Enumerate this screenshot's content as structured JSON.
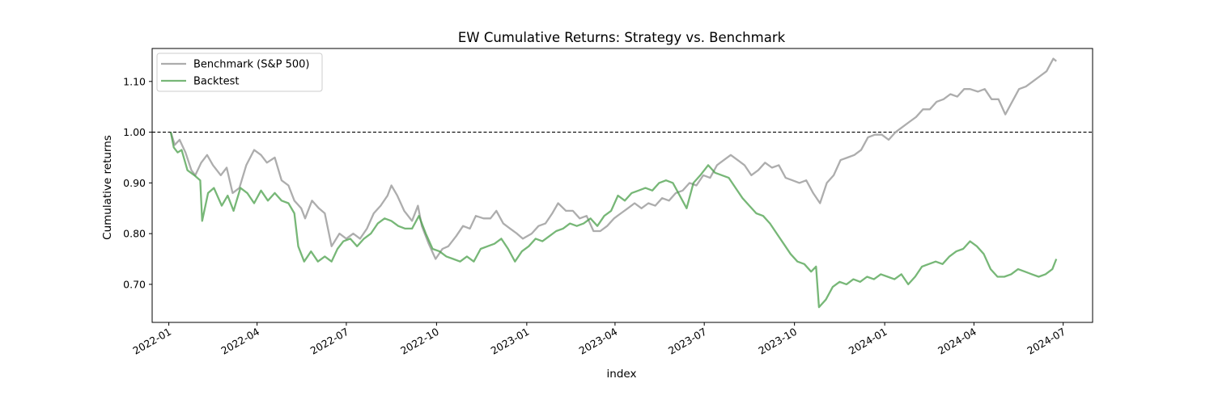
{
  "chart_data": {
    "type": "line",
    "title": "EW Cumulative Returns: Strategy vs. Benchmark",
    "xlabel": "index",
    "ylabel": "Cumulative returns",
    "x_ticks": [
      "2022-01",
      "2022-04",
      "2022-07",
      "2022-10",
      "2023-01",
      "2023-04",
      "2023-07",
      "2023-10",
      "2024-01",
      "2024-04",
      "2024-07"
    ],
    "y_ticks": [
      "0.70",
      "0.80",
      "0.90",
      "1.00",
      "1.10"
    ],
    "xlim": [
      "2021-12-15",
      "2024-07-31"
    ],
    "ylim": [
      0.625,
      1.165
    ],
    "reference_line": {
      "y": 1.0,
      "style": "dashed",
      "color": "#000000"
    },
    "legend_position": "top-left",
    "grid": false,
    "series": [
      {
        "name": "Benchmark (S&P 500)",
        "color": "#a9a9a9",
        "points": [
          [
            "2022-01-03",
            1.0
          ],
          [
            "2022-01-07",
            0.975
          ],
          [
            "2022-01-12",
            0.985
          ],
          [
            "2022-01-18",
            0.96
          ],
          [
            "2022-01-24",
            0.925
          ],
          [
            "2022-01-28",
            0.915
          ],
          [
            "2022-02-03",
            0.94
          ],
          [
            "2022-02-09",
            0.955
          ],
          [
            "2022-02-15",
            0.935
          ],
          [
            "2022-02-23",
            0.915
          ],
          [
            "2022-03-01",
            0.93
          ],
          [
            "2022-03-07",
            0.88
          ],
          [
            "2022-03-14",
            0.89
          ],
          [
            "2022-03-21",
            0.935
          ],
          [
            "2022-03-29",
            0.965
          ],
          [
            "2022-04-05",
            0.955
          ],
          [
            "2022-04-11",
            0.94
          ],
          [
            "2022-04-19",
            0.95
          ],
          [
            "2022-04-26",
            0.905
          ],
          [
            "2022-05-03",
            0.895
          ],
          [
            "2022-05-09",
            0.865
          ],
          [
            "2022-05-16",
            0.85
          ],
          [
            "2022-05-20",
            0.83
          ],
          [
            "2022-05-27",
            0.865
          ],
          [
            "2022-06-03",
            0.85
          ],
          [
            "2022-06-09",
            0.84
          ],
          [
            "2022-06-16",
            0.775
          ],
          [
            "2022-06-24",
            0.8
          ],
          [
            "2022-07-01",
            0.79
          ],
          [
            "2022-07-08",
            0.8
          ],
          [
            "2022-07-15",
            0.79
          ],
          [
            "2022-07-22",
            0.81
          ],
          [
            "2022-07-29",
            0.84
          ],
          [
            "2022-08-05",
            0.855
          ],
          [
            "2022-08-12",
            0.875
          ],
          [
            "2022-08-16",
            0.895
          ],
          [
            "2022-08-22",
            0.875
          ],
          [
            "2022-08-29",
            0.845
          ],
          [
            "2022-09-06",
            0.825
          ],
          [
            "2022-09-12",
            0.855
          ],
          [
            "2022-09-16",
            0.815
          ],
          [
            "2022-09-23",
            0.78
          ],
          [
            "2022-09-30",
            0.75
          ],
          [
            "2022-10-07",
            0.77
          ],
          [
            "2022-10-13",
            0.775
          ],
          [
            "2022-10-21",
            0.795
          ],
          [
            "2022-10-28",
            0.815
          ],
          [
            "2022-11-04",
            0.81
          ],
          [
            "2022-11-10",
            0.835
          ],
          [
            "2022-11-18",
            0.83
          ],
          [
            "2022-11-25",
            0.83
          ],
          [
            "2022-12-01",
            0.845
          ],
          [
            "2022-12-08",
            0.82
          ],
          [
            "2022-12-15",
            0.81
          ],
          [
            "2022-12-22",
            0.8
          ],
          [
            "2022-12-28",
            0.79
          ],
          [
            "2023-01-06",
            0.8
          ],
          [
            "2023-01-13",
            0.815
          ],
          [
            "2023-01-20",
            0.82
          ],
          [
            "2023-01-27",
            0.84
          ],
          [
            "2023-02-02",
            0.86
          ],
          [
            "2023-02-10",
            0.845
          ],
          [
            "2023-02-17",
            0.845
          ],
          [
            "2023-02-24",
            0.83
          ],
          [
            "2023-03-03",
            0.835
          ],
          [
            "2023-03-10",
            0.805
          ],
          [
            "2023-03-17",
            0.805
          ],
          [
            "2023-03-24",
            0.815
          ],
          [
            "2023-03-31",
            0.83
          ],
          [
            "2023-04-07",
            0.84
          ],
          [
            "2023-04-14",
            0.85
          ],
          [
            "2023-04-21",
            0.86
          ],
          [
            "2023-04-28",
            0.85
          ],
          [
            "2023-05-05",
            0.86
          ],
          [
            "2023-05-12",
            0.855
          ],
          [
            "2023-05-19",
            0.87
          ],
          [
            "2023-05-26",
            0.865
          ],
          [
            "2023-06-02",
            0.88
          ],
          [
            "2023-06-09",
            0.885
          ],
          [
            "2023-06-16",
            0.9
          ],
          [
            "2023-06-23",
            0.895
          ],
          [
            "2023-06-30",
            0.915
          ],
          [
            "2023-07-07",
            0.91
          ],
          [
            "2023-07-14",
            0.935
          ],
          [
            "2023-07-21",
            0.945
          ],
          [
            "2023-07-28",
            0.955
          ],
          [
            "2023-08-04",
            0.945
          ],
          [
            "2023-08-11",
            0.935
          ],
          [
            "2023-08-18",
            0.915
          ],
          [
            "2023-08-25",
            0.925
          ],
          [
            "2023-09-01",
            0.94
          ],
          [
            "2023-09-08",
            0.93
          ],
          [
            "2023-09-15",
            0.935
          ],
          [
            "2023-09-22",
            0.91
          ],
          [
            "2023-09-29",
            0.905
          ],
          [
            "2023-10-06",
            0.9
          ],
          [
            "2023-10-13",
            0.905
          ],
          [
            "2023-10-20",
            0.88
          ],
          [
            "2023-10-27",
            0.86
          ],
          [
            "2023-11-03",
            0.9
          ],
          [
            "2023-11-10",
            0.915
          ],
          [
            "2023-11-17",
            0.945
          ],
          [
            "2023-11-24",
            0.95
          ],
          [
            "2023-12-01",
            0.955
          ],
          [
            "2023-12-08",
            0.965
          ],
          [
            "2023-12-15",
            0.99
          ],
          [
            "2023-12-22",
            0.995
          ],
          [
            "2023-12-29",
            0.995
          ],
          [
            "2024-01-05",
            0.985
          ],
          [
            "2024-01-12",
            1.0
          ],
          [
            "2024-01-19",
            1.01
          ],
          [
            "2024-01-26",
            1.02
          ],
          [
            "2024-02-02",
            1.03
          ],
          [
            "2024-02-09",
            1.045
          ],
          [
            "2024-02-16",
            1.045
          ],
          [
            "2024-02-23",
            1.06
          ],
          [
            "2024-03-01",
            1.065
          ],
          [
            "2024-03-08",
            1.075
          ],
          [
            "2024-03-15",
            1.07
          ],
          [
            "2024-03-22",
            1.085
          ],
          [
            "2024-03-28",
            1.085
          ],
          [
            "2024-04-05",
            1.08
          ],
          [
            "2024-04-12",
            1.085
          ],
          [
            "2024-04-19",
            1.065
          ],
          [
            "2024-04-26",
            1.065
          ],
          [
            "2024-05-03",
            1.035
          ],
          [
            "2024-05-10",
            1.06
          ],
          [
            "2024-05-17",
            1.085
          ],
          [
            "2024-05-24",
            1.09
          ],
          [
            "2024-05-31",
            1.1
          ],
          [
            "2024-06-07",
            1.11
          ],
          [
            "2024-06-14",
            1.12
          ],
          [
            "2024-06-21",
            1.145
          ],
          [
            "2024-06-24",
            1.14
          ]
        ]
      },
      {
        "name": "Backtest",
        "color": "#4a9f4a",
        "points": [
          [
            "2022-01-03",
            1.0
          ],
          [
            "2022-01-06",
            0.97
          ],
          [
            "2022-01-10",
            0.96
          ],
          [
            "2022-01-14",
            0.965
          ],
          [
            "2022-01-20",
            0.925
          ],
          [
            "2022-01-27",
            0.915
          ],
          [
            "2022-02-02",
            0.905
          ],
          [
            "2022-02-04",
            0.825
          ],
          [
            "2022-02-10",
            0.88
          ],
          [
            "2022-02-16",
            0.89
          ],
          [
            "2022-02-24",
            0.855
          ],
          [
            "2022-03-02",
            0.875
          ],
          [
            "2022-03-08",
            0.845
          ],
          [
            "2022-03-15",
            0.89
          ],
          [
            "2022-03-22",
            0.88
          ],
          [
            "2022-03-29",
            0.86
          ],
          [
            "2022-04-05",
            0.885
          ],
          [
            "2022-04-12",
            0.865
          ],
          [
            "2022-04-19",
            0.88
          ],
          [
            "2022-04-26",
            0.865
          ],
          [
            "2022-05-03",
            0.86
          ],
          [
            "2022-05-09",
            0.84
          ],
          [
            "2022-05-13",
            0.775
          ],
          [
            "2022-05-19",
            0.745
          ],
          [
            "2022-05-26",
            0.765
          ],
          [
            "2022-06-02",
            0.745
          ],
          [
            "2022-06-09",
            0.755
          ],
          [
            "2022-06-16",
            0.745
          ],
          [
            "2022-06-22",
            0.77
          ],
          [
            "2022-06-28",
            0.785
          ],
          [
            "2022-07-05",
            0.79
          ],
          [
            "2022-07-12",
            0.775
          ],
          [
            "2022-07-19",
            0.79
          ],
          [
            "2022-07-26",
            0.8
          ],
          [
            "2022-08-02",
            0.82
          ],
          [
            "2022-08-09",
            0.83
          ],
          [
            "2022-08-16",
            0.825
          ],
          [
            "2022-08-23",
            0.815
          ],
          [
            "2022-08-30",
            0.81
          ],
          [
            "2022-09-06",
            0.81
          ],
          [
            "2022-09-13",
            0.835
          ],
          [
            "2022-09-20",
            0.8
          ],
          [
            "2022-09-27",
            0.77
          ],
          [
            "2022-10-04",
            0.765
          ],
          [
            "2022-10-11",
            0.755
          ],
          [
            "2022-10-18",
            0.75
          ],
          [
            "2022-10-25",
            0.745
          ],
          [
            "2022-11-01",
            0.755
          ],
          [
            "2022-11-08",
            0.745
          ],
          [
            "2022-11-15",
            0.77
          ],
          [
            "2022-11-22",
            0.775
          ],
          [
            "2022-11-29",
            0.78
          ],
          [
            "2022-12-06",
            0.79
          ],
          [
            "2022-12-13",
            0.77
          ],
          [
            "2022-12-20",
            0.745
          ],
          [
            "2022-12-27",
            0.765
          ],
          [
            "2023-01-03",
            0.775
          ],
          [
            "2023-01-10",
            0.79
          ],
          [
            "2023-01-17",
            0.785
          ],
          [
            "2023-01-24",
            0.795
          ],
          [
            "2023-01-31",
            0.805
          ],
          [
            "2023-02-07",
            0.81
          ],
          [
            "2023-02-14",
            0.82
          ],
          [
            "2023-02-21",
            0.815
          ],
          [
            "2023-02-28",
            0.82
          ],
          [
            "2023-03-07",
            0.83
          ],
          [
            "2023-03-14",
            0.815
          ],
          [
            "2023-03-21",
            0.835
          ],
          [
            "2023-03-28",
            0.845
          ],
          [
            "2023-04-04",
            0.875
          ],
          [
            "2023-04-11",
            0.865
          ],
          [
            "2023-04-18",
            0.88
          ],
          [
            "2023-04-25",
            0.885
          ],
          [
            "2023-05-02",
            0.89
          ],
          [
            "2023-05-09",
            0.885
          ],
          [
            "2023-05-16",
            0.9
          ],
          [
            "2023-05-23",
            0.905
          ],
          [
            "2023-05-30",
            0.9
          ],
          [
            "2023-06-06",
            0.875
          ],
          [
            "2023-06-13",
            0.85
          ],
          [
            "2023-06-20",
            0.9
          ],
          [
            "2023-06-27",
            0.915
          ],
          [
            "2023-07-05",
            0.935
          ],
          [
            "2023-07-12",
            0.92
          ],
          [
            "2023-07-19",
            0.915
          ],
          [
            "2023-07-26",
            0.91
          ],
          [
            "2023-08-02",
            0.89
          ],
          [
            "2023-08-09",
            0.87
          ],
          [
            "2023-08-16",
            0.855
          ],
          [
            "2023-08-23",
            0.84
          ],
          [
            "2023-08-30",
            0.835
          ],
          [
            "2023-09-06",
            0.82
          ],
          [
            "2023-09-13",
            0.8
          ],
          [
            "2023-09-20",
            0.78
          ],
          [
            "2023-09-27",
            0.76
          ],
          [
            "2023-10-04",
            0.745
          ],
          [
            "2023-10-11",
            0.74
          ],
          [
            "2023-10-18",
            0.725
          ],
          [
            "2023-10-23",
            0.735
          ],
          [
            "2023-10-26",
            0.655
          ],
          [
            "2023-11-02",
            0.67
          ],
          [
            "2023-11-09",
            0.695
          ],
          [
            "2023-11-16",
            0.705
          ],
          [
            "2023-11-23",
            0.7
          ],
          [
            "2023-11-30",
            0.71
          ],
          [
            "2023-12-07",
            0.705
          ],
          [
            "2023-12-14",
            0.715
          ],
          [
            "2023-12-21",
            0.71
          ],
          [
            "2023-12-28",
            0.72
          ],
          [
            "2024-01-04",
            0.715
          ],
          [
            "2024-01-11",
            0.71
          ],
          [
            "2024-01-18",
            0.72
          ],
          [
            "2024-01-25",
            0.7
          ],
          [
            "2024-02-01",
            0.715
          ],
          [
            "2024-02-08",
            0.735
          ],
          [
            "2024-02-15",
            0.74
          ],
          [
            "2024-02-22",
            0.745
          ],
          [
            "2024-02-29",
            0.74
          ],
          [
            "2024-03-07",
            0.755
          ],
          [
            "2024-03-14",
            0.765
          ],
          [
            "2024-03-21",
            0.77
          ],
          [
            "2024-03-28",
            0.785
          ],
          [
            "2024-04-04",
            0.775
          ],
          [
            "2024-04-11",
            0.76
          ],
          [
            "2024-04-18",
            0.73
          ],
          [
            "2024-04-25",
            0.715
          ],
          [
            "2024-05-02",
            0.715
          ],
          [
            "2024-05-09",
            0.72
          ],
          [
            "2024-05-16",
            0.73
          ],
          [
            "2024-05-23",
            0.725
          ],
          [
            "2024-05-30",
            0.72
          ],
          [
            "2024-06-06",
            0.715
          ],
          [
            "2024-06-13",
            0.72
          ],
          [
            "2024-06-20",
            0.73
          ],
          [
            "2024-06-24",
            0.75
          ]
        ]
      }
    ]
  }
}
